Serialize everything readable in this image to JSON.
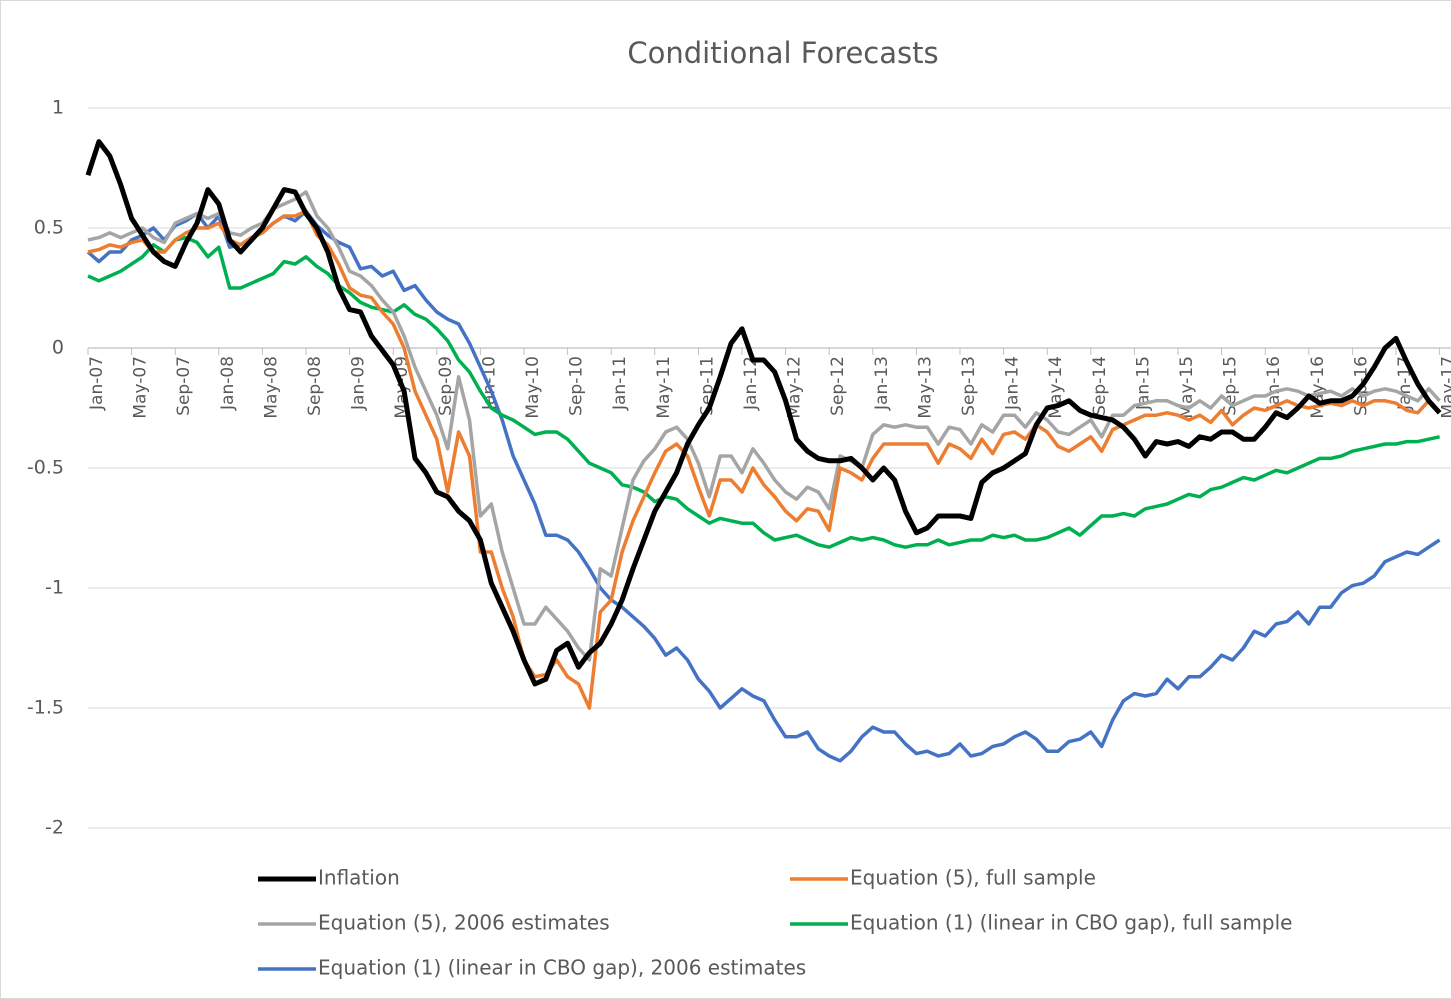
{
  "chart_data": {
    "type": "line",
    "title": "Conditional Forecasts",
    "categories": [
      "Jan-07",
      null,
      null,
      null,
      "May-07",
      null,
      null,
      null,
      "Sep-07",
      null,
      null,
      null,
      "Jan-08",
      null,
      null,
      null,
      "May-08",
      null,
      null,
      null,
      "Sep-08",
      null,
      null,
      null,
      "Jan-09",
      null,
      null,
      null,
      "May-09",
      null,
      null,
      null,
      "Sep-09",
      null,
      null,
      null,
      "Jan-10",
      null,
      null,
      null,
      "May-10",
      null,
      null,
      null,
      "Sep-10",
      null,
      null,
      null,
      "Jan-11",
      null,
      null,
      null,
      "May-11",
      null,
      null,
      null,
      "Sep-11",
      null,
      null,
      null,
      "Jan-12",
      null,
      null,
      null,
      "May-12",
      null,
      null,
      null,
      "Sep-12",
      null,
      null,
      null,
      "Jan-13",
      null,
      null,
      null,
      "May-13",
      null,
      null,
      null,
      "Sep-13",
      null,
      null,
      null,
      "Jan-14",
      null,
      null,
      null,
      "May-14",
      null,
      null,
      null,
      "Sep-14",
      null,
      null,
      null,
      "Jan-15",
      null,
      null,
      null,
      "May-15",
      null,
      null,
      null,
      "Sep-15",
      null,
      null,
      null,
      "Jan-16",
      null,
      null,
      null,
      "May-16",
      null,
      null,
      null,
      "Sep-16",
      null,
      null,
      null,
      "Jan-17",
      null,
      null,
      null,
      "May-17"
    ],
    "ylim": [
      -2,
      1
    ],
    "yticks": [
      1,
      0.5,
      0,
      -0.5,
      -1,
      -1.5,
      -2
    ],
    "grid": true,
    "series": [
      {
        "name": "Inflation",
        "color": "#000000",
        "line_width": 5,
        "values": [
          0.72,
          0.86,
          0.8,
          0.68,
          0.54,
          0.47,
          0.4,
          0.36,
          0.34,
          0.44,
          0.52,
          0.66,
          0.6,
          0.45,
          0.4,
          0.45,
          0.5,
          0.58,
          0.66,
          0.65,
          0.56,
          0.5,
          0.4,
          0.25,
          0.16,
          0.15,
          0.05,
          -0.01,
          -0.07,
          -0.18,
          -0.46,
          -0.52,
          -0.6,
          -0.62,
          -0.68,
          -0.72,
          -0.8,
          -0.98,
          -1.08,
          -1.18,
          -1.3,
          -1.4,
          -1.38,
          -1.26,
          -1.23,
          -1.33,
          -1.27,
          -1.23,
          -1.15,
          -1.05,
          -0.92,
          -0.8,
          -0.68,
          -0.6,
          -0.52,
          -0.4,
          -0.32,
          -0.25,
          -0.12,
          0.02,
          0.08,
          -0.05,
          -0.05,
          -0.1,
          -0.22,
          -0.38,
          -0.43,
          -0.46,
          -0.47,
          -0.47,
          -0.46,
          -0.5,
          -0.55,
          -0.5,
          -0.55,
          -0.68,
          -0.77,
          -0.75,
          -0.7,
          -0.7,
          -0.7,
          -0.71,
          -0.56,
          -0.52,
          -0.5,
          -0.47,
          -0.44,
          -0.32,
          -0.25,
          -0.24,
          -0.22,
          -0.26,
          -0.28,
          -0.29,
          -0.3,
          -0.33,
          -0.38,
          -0.45,
          -0.39,
          -0.4,
          -0.39,
          -0.41,
          -0.37,
          -0.38,
          -0.35,
          -0.35,
          -0.38,
          -0.38,
          -0.33,
          -0.27,
          -0.29,
          -0.25,
          -0.2,
          -0.23,
          -0.22,
          -0.22,
          -0.2,
          -0.15,
          -0.08,
          0.0,
          0.04,
          -0.06,
          -0.15,
          -0.22,
          -0.27
        ]
      },
      {
        "name": "Equation (5), full sample",
        "color": "#ed7d31",
        "line_width": 3.5,
        "values": [
          0.4,
          0.41,
          0.43,
          0.42,
          0.44,
          0.45,
          0.4,
          0.4,
          0.45,
          0.48,
          0.5,
          0.5,
          0.52,
          0.45,
          0.43,
          0.46,
          0.48,
          0.52,
          0.55,
          0.55,
          0.57,
          0.47,
          0.43,
          0.35,
          0.25,
          0.22,
          0.21,
          0.15,
          0.1,
          0.0,
          -0.18,
          -0.28,
          -0.38,
          -0.6,
          -0.35,
          -0.45,
          -0.85,
          -0.85,
          -1.0,
          -1.12,
          -1.3,
          -1.37,
          -1.36,
          -1.3,
          -1.37,
          -1.4,
          -1.5,
          -1.1,
          -1.05,
          -0.85,
          -0.72,
          -0.62,
          -0.52,
          -0.43,
          -0.4,
          -0.45,
          -0.58,
          -0.7,
          -0.55,
          -0.55,
          -0.6,
          -0.5,
          -0.57,
          -0.62,
          -0.68,
          -0.72,
          -0.67,
          -0.68,
          -0.76,
          -0.5,
          -0.52,
          -0.55,
          -0.46,
          -0.4,
          -0.4,
          -0.4,
          -0.4,
          -0.4,
          -0.48,
          -0.4,
          -0.42,
          -0.46,
          -0.38,
          -0.44,
          -0.36,
          -0.35,
          -0.38,
          -0.32,
          -0.35,
          -0.41,
          -0.43,
          -0.4,
          -0.37,
          -0.43,
          -0.34,
          -0.32,
          -0.3,
          -0.28,
          -0.28,
          -0.27,
          -0.28,
          -0.3,
          -0.28,
          -0.31,
          -0.26,
          -0.32,
          -0.28,
          -0.25,
          -0.26,
          -0.24,
          -0.22,
          -0.24,
          -0.25,
          -0.24,
          -0.23,
          -0.24,
          -0.22,
          -0.24,
          -0.22,
          -0.22,
          -0.23,
          -0.26,
          -0.27,
          -0.22,
          -0.27
        ]
      },
      {
        "name": "Equation (5), 2006 estimates",
        "color": "#a5a5a5",
        "line_width": 3.5,
        "values": [
          0.45,
          0.46,
          0.48,
          0.46,
          0.48,
          0.5,
          0.46,
          0.44,
          0.52,
          0.54,
          0.56,
          0.54,
          0.56,
          0.48,
          0.47,
          0.5,
          0.52,
          0.58,
          0.6,
          0.62,
          0.65,
          0.55,
          0.5,
          0.42,
          0.32,
          0.3,
          0.26,
          0.2,
          0.15,
          0.05,
          -0.08,
          -0.18,
          -0.28,
          -0.42,
          -0.12,
          -0.3,
          -0.7,
          -0.65,
          -0.85,
          -1.0,
          -1.15,
          -1.15,
          -1.08,
          -1.13,
          -1.18,
          -1.25,
          -1.3,
          -0.92,
          -0.95,
          -0.75,
          -0.55,
          -0.47,
          -0.42,
          -0.35,
          -0.33,
          -0.38,
          -0.48,
          -0.62,
          -0.45,
          -0.45,
          -0.52,
          -0.42,
          -0.48,
          -0.55,
          -0.6,
          -0.63,
          -0.58,
          -0.6,
          -0.67,
          -0.45,
          -0.47,
          -0.5,
          -0.36,
          -0.32,
          -0.33,
          -0.32,
          -0.33,
          -0.33,
          -0.4,
          -0.33,
          -0.34,
          -0.4,
          -0.32,
          -0.35,
          -0.28,
          -0.28,
          -0.33,
          -0.27,
          -0.3,
          -0.35,
          -0.36,
          -0.33,
          -0.3,
          -0.37,
          -0.28,
          -0.28,
          -0.24,
          -0.23,
          -0.22,
          -0.22,
          -0.24,
          -0.25,
          -0.22,
          -0.25,
          -0.2,
          -0.24,
          -0.22,
          -0.2,
          -0.2,
          -0.18,
          -0.17,
          -0.18,
          -0.2,
          -0.19,
          -0.18,
          -0.2,
          -0.17,
          -0.2,
          -0.18,
          -0.17,
          -0.18,
          -0.2,
          -0.22,
          -0.17,
          -0.22
        ]
      },
      {
        "name": "Equation (1) (linear in CBO gap), full sample",
        "color": "#00b050",
        "line_width": 3.5,
        "values": [
          0.3,
          0.28,
          0.3,
          0.32,
          0.35,
          0.38,
          0.43,
          0.4,
          0.45,
          0.46,
          0.44,
          0.38,
          0.42,
          0.25,
          0.25,
          0.27,
          0.29,
          0.31,
          0.36,
          0.35,
          0.38,
          0.34,
          0.31,
          0.26,
          0.23,
          0.19,
          0.17,
          0.16,
          0.15,
          0.18,
          0.14,
          0.12,
          0.08,
          0.03,
          -0.05,
          -0.1,
          -0.18,
          -0.25,
          -0.28,
          -0.3,
          -0.33,
          -0.36,
          -0.35,
          -0.35,
          -0.38,
          -0.43,
          -0.48,
          -0.5,
          -0.52,
          -0.57,
          -0.58,
          -0.6,
          -0.64,
          -0.62,
          -0.63,
          -0.67,
          -0.7,
          -0.73,
          -0.71,
          -0.72,
          -0.73,
          -0.73,
          -0.77,
          -0.8,
          -0.79,
          -0.78,
          -0.8,
          -0.82,
          -0.83,
          -0.81,
          -0.79,
          -0.8,
          -0.79,
          -0.8,
          -0.82,
          -0.83,
          -0.82,
          -0.82,
          -0.8,
          -0.82,
          -0.81,
          -0.8,
          -0.8,
          -0.78,
          -0.79,
          -0.78,
          -0.8,
          -0.8,
          -0.79,
          -0.77,
          -0.75,
          -0.78,
          -0.74,
          -0.7,
          -0.7,
          -0.69,
          -0.7,
          -0.67,
          -0.66,
          -0.65,
          -0.63,
          -0.61,
          -0.62,
          -0.59,
          -0.58,
          -0.56,
          -0.54,
          -0.55,
          -0.53,
          -0.51,
          -0.52,
          -0.5,
          -0.48,
          -0.46,
          -0.46,
          -0.45,
          -0.43,
          -0.42,
          -0.41,
          -0.4,
          -0.4,
          -0.39,
          -0.39,
          -0.38,
          -0.37
        ]
      },
      {
        "name": "Equation (1) (linear in CBO gap), 2006 estimates",
        "color": "#4472c4",
        "line_width": 3.5,
        "values": [
          0.4,
          0.36,
          0.4,
          0.4,
          0.45,
          0.47,
          0.5,
          0.45,
          0.51,
          0.53,
          0.56,
          0.5,
          0.55,
          0.42,
          0.43,
          0.46,
          0.48,
          0.52,
          0.55,
          0.53,
          0.57,
          0.51,
          0.47,
          0.44,
          0.42,
          0.33,
          0.34,
          0.3,
          0.32,
          0.24,
          0.26,
          0.2,
          0.15,
          0.12,
          0.1,
          0.02,
          -0.08,
          -0.18,
          -0.3,
          -0.45,
          -0.55,
          -0.65,
          -0.78,
          -0.78,
          -0.8,
          -0.85,
          -0.92,
          -1.0,
          -1.05,
          -1.08,
          -1.12,
          -1.16,
          -1.21,
          -1.28,
          -1.25,
          -1.3,
          -1.38,
          -1.43,
          -1.5,
          -1.46,
          -1.42,
          -1.45,
          -1.47,
          -1.55,
          -1.62,
          -1.62,
          -1.6,
          -1.67,
          -1.7,
          -1.72,
          -1.68,
          -1.62,
          -1.58,
          -1.6,
          -1.6,
          -1.65,
          -1.69,
          -1.68,
          -1.7,
          -1.69,
          -1.65,
          -1.7,
          -1.69,
          -1.66,
          -1.65,
          -1.62,
          -1.6,
          -1.63,
          -1.68,
          -1.68,
          -1.64,
          -1.63,
          -1.6,
          -1.66,
          -1.55,
          -1.47,
          -1.44,
          -1.45,
          -1.44,
          -1.38,
          -1.42,
          -1.37,
          -1.37,
          -1.33,
          -1.28,
          -1.3,
          -1.25,
          -1.18,
          -1.2,
          -1.15,
          -1.14,
          -1.1,
          -1.15,
          -1.08,
          -1.08,
          -1.02,
          -0.99,
          -0.98,
          -0.95,
          -0.89,
          -0.87,
          -0.85,
          -0.86,
          -0.83,
          -0.8
        ]
      }
    ]
  }
}
